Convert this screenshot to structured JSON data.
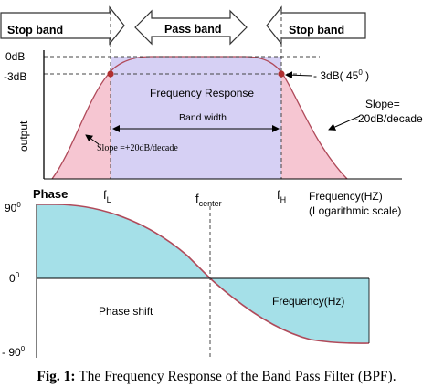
{
  "bands": {
    "stop_left": "Stop band",
    "pass": "Pass band",
    "stop_right": "Stop band"
  },
  "levels": {
    "zero_db": "0dB",
    "minus3db": "-3dB",
    "minus3db_45": "- 3dB( 45",
    "degree_sup": "0",
    "close_paren": " )"
  },
  "axis": {
    "output": "output",
    "phase": "Phase",
    "frequency": "Frequency(HZ)",
    "log_scale": "(Logarithmic scale)"
  },
  "labels": {
    "frequency_response": "Frequency Response",
    "band_width": "Band width",
    "slope_left": "Slope =+20dB/decade",
    "slope_right_1": "Slope=",
    "slope_right_2": "-20dB/decade",
    "phase_shift": "Phase shift",
    "frequency_hz": "Frequency(Hz)"
  },
  "freqs": {
    "f_low": "f",
    "f_low_sub": "L",
    "f_center": "f",
    "f_center_sub": "center",
    "f_high": "f",
    "f_high_sub": "H"
  },
  "phase_ticks": {
    "p90": "90",
    "p0": "0",
    "m90": "- 90",
    "deg": "0"
  },
  "caption": {
    "label": "Fig. 1:",
    "text": " The Frequency Response of the Band Pass Filter (BPF)."
  },
  "colors": {
    "stop_band_fill": "#f6c6d2",
    "pass_band_fill": "#d6d0f4",
    "phase_fill": "#a5e0e8",
    "curve": "#b04a5a",
    "marker": "#b03030"
  }
}
